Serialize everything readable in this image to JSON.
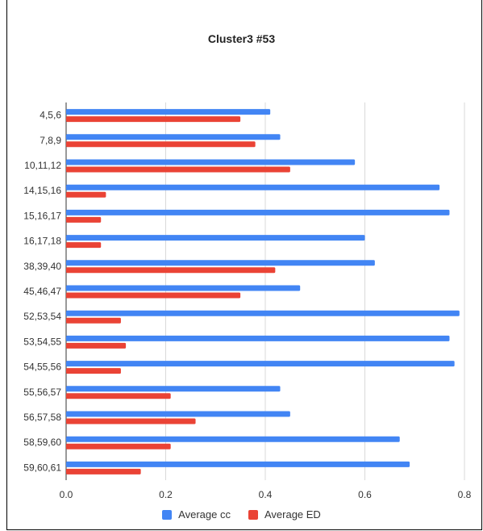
{
  "chart_data": {
    "type": "bar",
    "orientation": "horizontal",
    "title": "Cluster3 #53",
    "xlabel": "",
    "ylabel": "",
    "categories": [
      "4,5,6",
      "7,8,9",
      "10,11,12",
      "14,15,16",
      "15,16,17",
      "16,17,18",
      "38,39,40",
      "45,46,47",
      "52,53,54",
      "53,54,55",
      "54,55,56",
      "55,56,57",
      "56,57,58",
      "58,59,60",
      "59,60,61"
    ],
    "series": [
      {
        "name": "Average cc",
        "color": "#4285f4",
        "values": [
          0.41,
          0.43,
          0.58,
          0.75,
          0.77,
          0.6,
          0.62,
          0.47,
          0.79,
          0.77,
          0.78,
          0.43,
          0.45,
          0.67,
          0.69
        ]
      },
      {
        "name": "Average ED",
        "color": "#ea4335",
        "values": [
          0.35,
          0.38,
          0.45,
          0.08,
          0.07,
          0.07,
          0.42,
          0.35,
          0.11,
          0.12,
          0.11,
          0.21,
          0.26,
          0.21,
          0.15
        ]
      }
    ],
    "xlim": [
      0,
      0.8
    ],
    "xticks": [
      "0.0",
      "0.2",
      "0.4",
      "0.6",
      "0.8"
    ],
    "grid": true,
    "legend_position": "bottom"
  }
}
